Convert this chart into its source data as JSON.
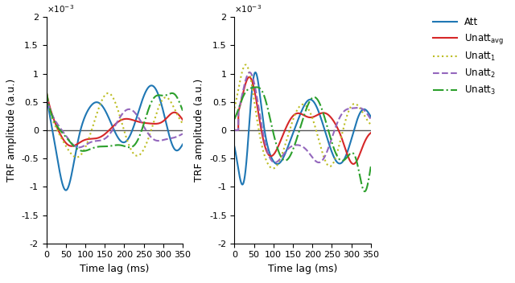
{
  "xlim": [
    0,
    350
  ],
  "ylim": [
    -0.002,
    0.002
  ],
  "yticks": [
    -0.002,
    -0.0015,
    -0.001,
    -0.0005,
    0,
    0.0005,
    0.001,
    0.0015,
    0.002
  ],
  "ytick_labels": [
    "-2",
    "-1.5",
    "-1",
    "-0.5",
    "0",
    "0.5",
    "1",
    "1.5",
    "2"
  ],
  "xticks": [
    0,
    50,
    100,
    150,
    200,
    250,
    300,
    350
  ],
  "xlabel": "Time lag (ms)",
  "ylabel": "TRF amplitude (a.u.)",
  "colors": {
    "att": "#1f77b4",
    "unatt_avg": "#d62728",
    "unatt1": "#bcbd22",
    "unatt2": "#9467bd",
    "unatt3": "#2ca02c"
  },
  "bg_color": "#ffffff",
  "zero_line_color": "#555555"
}
